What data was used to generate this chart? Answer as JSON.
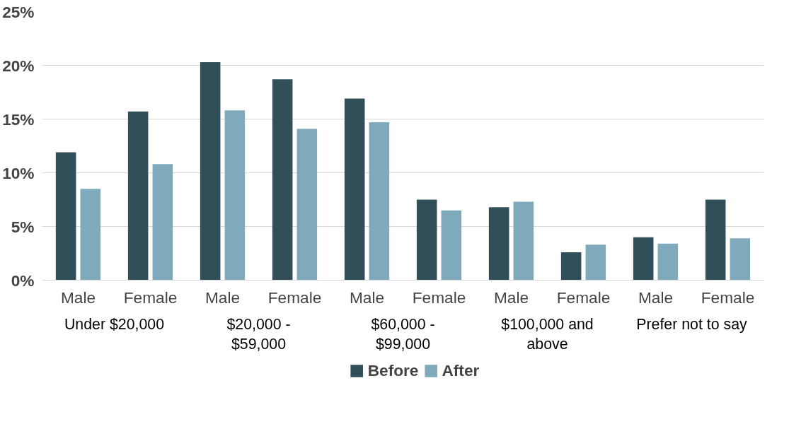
{
  "chart_data": {
    "type": "bar",
    "categories": [
      "Male",
      "Female",
      "Male",
      "Female",
      "Male",
      "Female",
      "Male",
      "Female",
      "Male",
      "Female"
    ],
    "annotations": [
      "Under $20,000",
      "$20,000 -\n$59,000",
      "$60,000 -\n$99,000",
      "$100,000 and\nabove",
      "Prefer not to say"
    ],
    "series": [
      {
        "name": "Before",
        "color": "#304f59",
        "values": [
          11.9,
          15.7,
          20.3,
          18.7,
          16.9,
          7.5,
          6.8,
          2.6,
          4.0,
          7.5
        ]
      },
      {
        "name": "After",
        "color": "#7faabb",
        "values": [
          8.5,
          10.8,
          15.8,
          14.1,
          14.7,
          6.5,
          7.3,
          3.3,
          3.4,
          3.9
        ]
      }
    ],
    "ylim": [
      0,
      25
    ],
    "yticks": [
      {
        "value": 0,
        "label": "0%"
      },
      {
        "value": 5,
        "label": "5%"
      },
      {
        "value": 10,
        "label": "10%"
      },
      {
        "value": 15,
        "label": "15%"
      },
      {
        "value": 20,
        "label": "20%"
      },
      {
        "value": 25,
        "label": "25%"
      }
    ],
    "grid": "y",
    "legend": "bottom"
  }
}
